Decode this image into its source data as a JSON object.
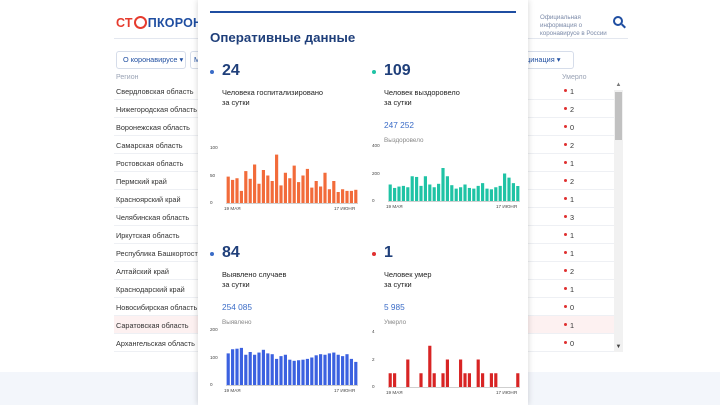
{
  "site": {
    "logo_stop": "СТ",
    "logo_rest": "ПКОРОНАВИ",
    "official_text": "Официальная информация о коронавирусе в России",
    "nav_pills": [
      "О коронавирусе ▾",
      "М",
      "Вакцинация ▾"
    ]
  },
  "table": {
    "col_region": "Регион",
    "col_died": "Умерло",
    "rows": [
      {
        "name": "Свердловская область",
        "value": "1"
      },
      {
        "name": "Нижегородская область",
        "value": "2"
      },
      {
        "name": "Воронежская область",
        "value": "0"
      },
      {
        "name": "Самарская область",
        "value": "2"
      },
      {
        "name": "Ростовская область",
        "value": "1"
      },
      {
        "name": "Пермский край",
        "value": "2"
      },
      {
        "name": "Красноярский край",
        "value": "1"
      },
      {
        "name": "Челябинская область",
        "value": "3"
      },
      {
        "name": "Иркутская область",
        "value": "1"
      },
      {
        "name": "Республика Башкортостан",
        "value": "1"
      },
      {
        "name": "Алтайский край",
        "value": "2"
      },
      {
        "name": "Краснодарский край",
        "value": "1"
      },
      {
        "name": "Новосибирская область",
        "value": "0"
      },
      {
        "name": "Саратовская область",
        "value": "1"
      },
      {
        "name": "Архангельская область",
        "value": "0"
      }
    ]
  },
  "panel": {
    "title": "Оперативные данные",
    "cards": [
      {
        "number": "24",
        "line1": "Человека госпитализировано",
        "line2": "за сутки",
        "total": "",
        "total_label": "",
        "color": "#3b6cc7"
      },
      {
        "number": "109",
        "line1": "Человек выздоровело",
        "line2": "за сутки",
        "total": "247 252",
        "total_label": "Выздоровело",
        "color": "#1fc3a5"
      },
      {
        "number": "84",
        "line1": "Выявлено случаев",
        "line2": "за сутки",
        "total": "254 085",
        "total_label": "Выявлено",
        "color": "#3b6cc7"
      },
      {
        "number": "1",
        "line1": "Человек умер",
        "line2": "за сутки",
        "total": "5 985",
        "total_label": "Умерло",
        "color": "#e03030"
      }
    ]
  },
  "chart_data": [
    {
      "type": "bar",
      "x_start": "19 МАЯ",
      "x_end": "17 ИЮНЯ",
      "ylim": [
        0,
        100
      ],
      "yticks": [
        "100",
        "50",
        "0"
      ],
      "color": "#f26b3a",
      "values": [
        48,
        42,
        45,
        22,
        58,
        44,
        70,
        35,
        60,
        50,
        40,
        88,
        32,
        55,
        45,
        68,
        38,
        50,
        62,
        28,
        40,
        30,
        55,
        25,
        40,
        20,
        25,
        22,
        22,
        24
      ]
    },
    {
      "type": "bar",
      "x_start": "19 МАЯ",
      "x_end": "17 ИЮНЯ",
      "ylim": [
        0,
        400
      ],
      "yticks": [
        "400",
        "200",
        "0"
      ],
      "color": "#1fc3a5",
      "values": [
        120,
        95,
        105,
        110,
        100,
        180,
        175,
        110,
        180,
        120,
        100,
        125,
        240,
        180,
        115,
        90,
        100,
        120,
        95,
        90,
        110,
        130,
        90,
        85,
        100,
        110,
        200,
        170,
        130,
        109
      ]
    },
    {
      "type": "bar",
      "x_start": "19 МАЯ",
      "x_end": "17 ИЮНЯ",
      "ylim": [
        0,
        200
      ],
      "yticks": [
        "200",
        "100",
        "0"
      ],
      "color": "#3b61e0",
      "values": [
        115,
        130,
        132,
        135,
        110,
        120,
        110,
        118,
        128,
        115,
        112,
        95,
        105,
        110,
        92,
        88,
        90,
        92,
        95,
        100,
        108,
        112,
        110,
        115,
        118,
        110,
        105,
        112,
        95,
        84
      ]
    },
    {
      "type": "bar",
      "x_start": "19 МАЯ",
      "x_end": "17 ИЮНЯ",
      "ylim": [
        0,
        4
      ],
      "yticks": [
        "4",
        "2",
        "0"
      ],
      "color": "#d82424",
      "values": [
        1,
        1,
        0,
        0,
        2,
        0,
        0,
        1,
        0,
        3,
        1,
        0,
        1,
        2,
        0,
        0,
        2,
        1,
        1,
        0,
        2,
        1,
        0,
        1,
        1,
        0,
        0,
        0,
        0,
        1
      ]
    }
  ]
}
